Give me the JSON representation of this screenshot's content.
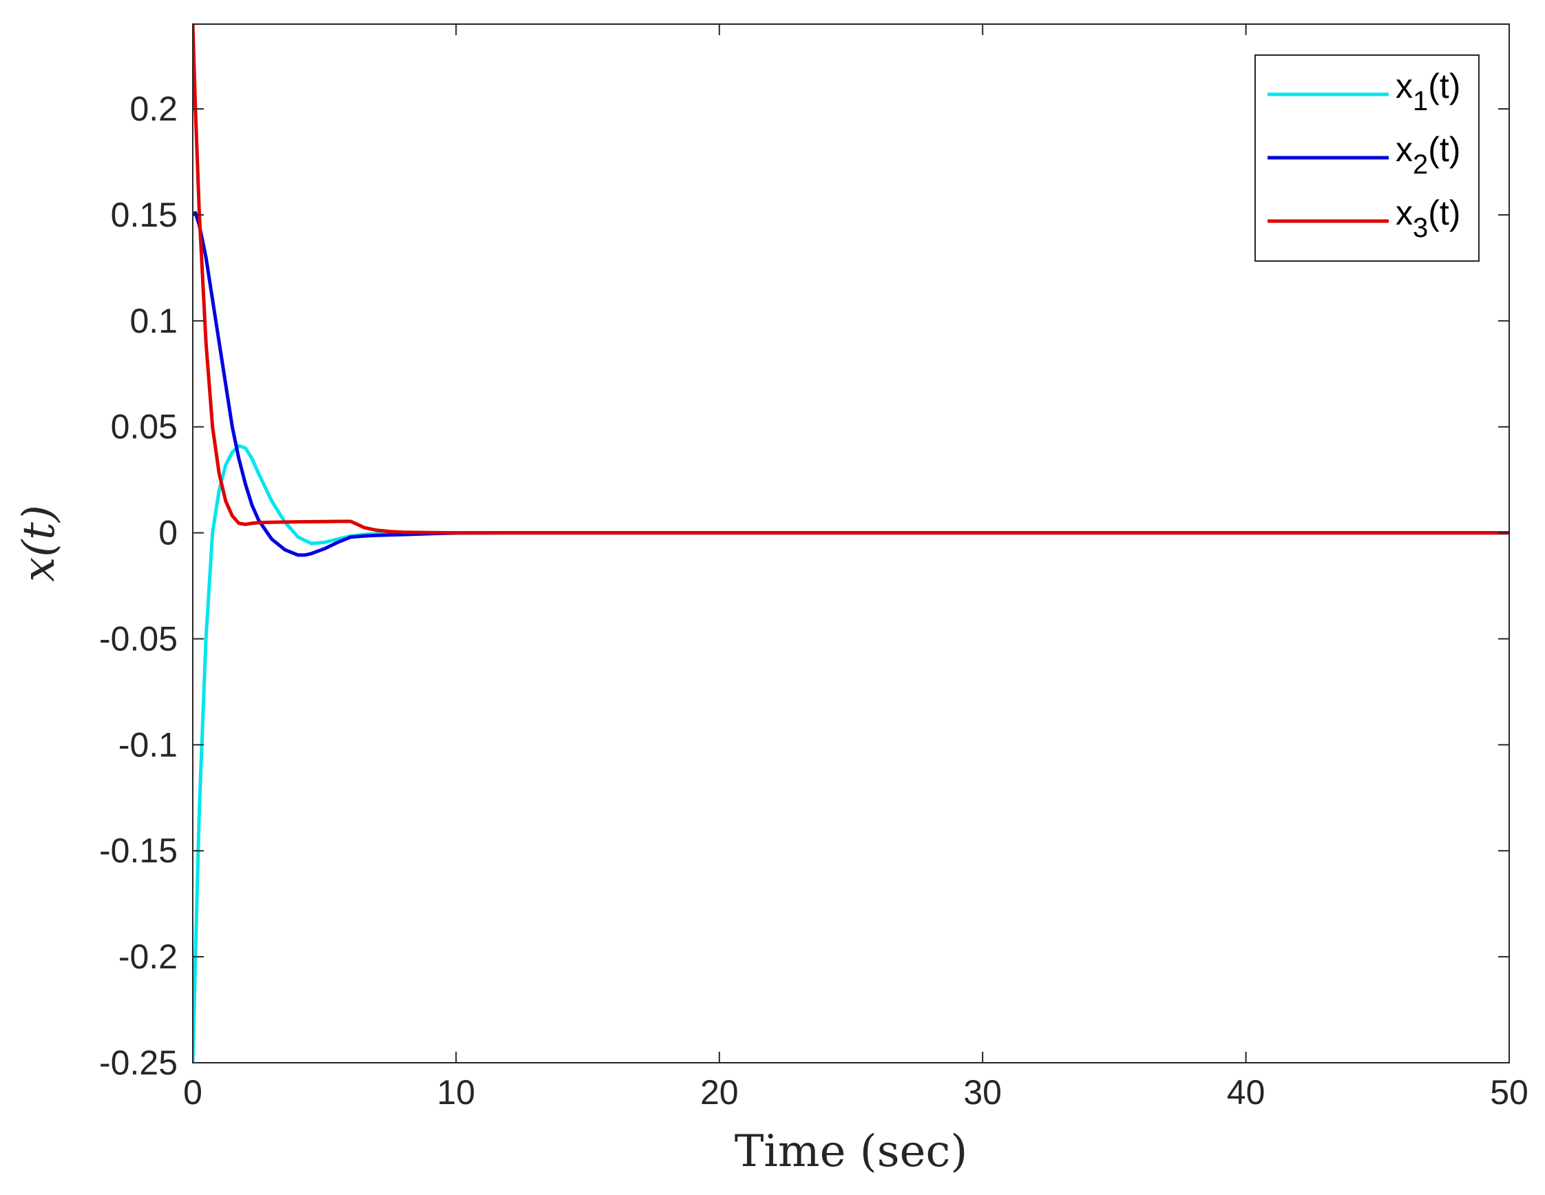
{
  "chart_data": {
    "type": "line",
    "xlabel": "Time (sec)",
    "ylabel": "x(t)",
    "xlim": [
      0,
      50
    ],
    "ylim": [
      -0.25,
      0.24
    ],
    "x_ticks": [
      0,
      10,
      20,
      30,
      40,
      50
    ],
    "x_tick_labels": [
      "0",
      "10",
      "20",
      "30",
      "40",
      "50"
    ],
    "y_ticks": [
      -0.25,
      -0.2,
      -0.15,
      -0.1,
      -0.05,
      0,
      0.05,
      0.1,
      0.15,
      0.2
    ],
    "y_tick_labels": [
      "-0.25",
      "-0.2",
      "-0.15",
      "-0.1",
      "-0.05",
      "0",
      "0.05",
      "0.1",
      "0.15",
      "0.2"
    ],
    "grid": false,
    "legend_position": "top-right",
    "series": [
      {
        "name": "x1(t)",
        "color": "#00e5ee",
        "x": [
          0,
          0.1,
          0.25,
          0.5,
          0.75,
          1.0,
          1.25,
          1.5,
          1.75,
          2.0,
          2.25,
          2.5,
          3.0,
          3.5,
          4.0,
          4.5,
          5.0,
          5.5,
          6.0,
          6.5,
          7.0,
          8.0,
          9.0,
          10.0,
          12.0,
          15.0,
          20.0,
          30.0,
          40.0,
          50.0
        ],
        "y": [
          -0.25,
          -0.2,
          -0.13,
          -0.05,
          0.0,
          0.02,
          0.032,
          0.038,
          0.041,
          0.04,
          0.035,
          0.028,
          0.015,
          0.005,
          -0.002,
          -0.005,
          -0.0045,
          -0.003,
          -0.0015,
          -0.0008,
          -0.0004,
          -0.0001,
          0,
          0,
          0,
          0,
          0,
          0,
          0,
          0
        ]
      },
      {
        "name": "x2(t)",
        "color": "#0000e0",
        "x": [
          0,
          0.1,
          0.25,
          0.5,
          0.75,
          1.0,
          1.25,
          1.5,
          1.75,
          2.0,
          2.25,
          2.5,
          3.0,
          3.5,
          4.0,
          4.25,
          4.5,
          5.0,
          5.5,
          6.0,
          6.5,
          7.0,
          8.0,
          9.0,
          10.0,
          12.0,
          15.0,
          20.0,
          30.0,
          40.0,
          50.0
        ],
        "y": [
          0.15,
          0.151,
          0.145,
          0.13,
          0.11,
          0.09,
          0.07,
          0.05,
          0.035,
          0.023,
          0.013,
          0.006,
          -0.003,
          -0.008,
          -0.0105,
          -0.0105,
          -0.0098,
          -0.0075,
          -0.0045,
          -0.002,
          -0.0015,
          -0.0012,
          -0.0008,
          -0.0004,
          -0.0001,
          0,
          0,
          0,
          0,
          0,
          0
        ]
      },
      {
        "name": "x3(t)",
        "color": "#e00000",
        "x": [
          0,
          0.1,
          0.25,
          0.5,
          0.75,
          1.0,
          1.25,
          1.5,
          1.75,
          2.0,
          2.25,
          2.5,
          3.0,
          4.0,
          5.0,
          5.5,
          6.0,
          6.25,
          6.5,
          7.0,
          7.5,
          8.0,
          9.0,
          10.0,
          12.0,
          15.0,
          20.0,
          30.0,
          40.0,
          50.0
        ],
        "y": [
          0.24,
          0.2,
          0.15,
          0.09,
          0.05,
          0.028,
          0.015,
          0.008,
          0.0045,
          0.004,
          0.0045,
          0.0048,
          0.005,
          0.0052,
          0.0053,
          0.0054,
          0.0054,
          0.004,
          0.0025,
          0.0012,
          0.0006,
          0.0003,
          0.0001,
          0,
          0,
          0,
          0,
          0,
          0,
          0
        ]
      }
    ]
  }
}
